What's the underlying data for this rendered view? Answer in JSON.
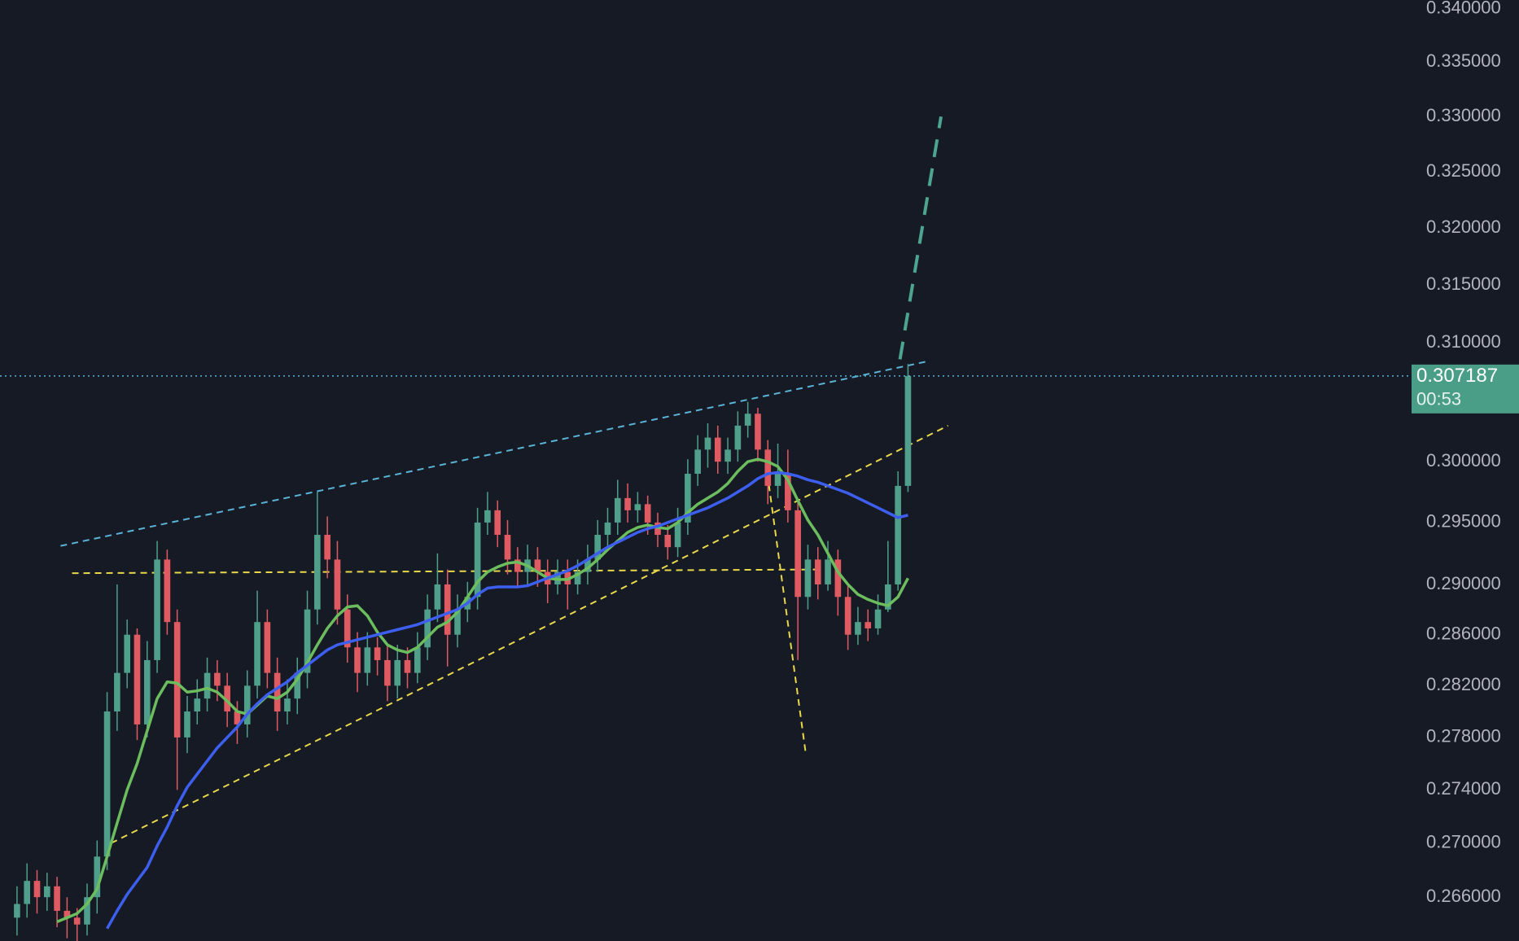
{
  "chart_data": {
    "type": "candlestick",
    "xlim": [
      -1.7,
      139.3
    ],
    "ylim": [
      0.2628,
      0.3408
    ],
    "log_scale": true,
    "yticks": [
      {
        "value": 0.34,
        "label": "0.340000"
      },
      {
        "value": 0.335,
        "label": "0.335000"
      },
      {
        "value": 0.33,
        "label": "0.330000"
      },
      {
        "value": 0.325,
        "label": "0.325000"
      },
      {
        "value": 0.32,
        "label": "0.320000"
      },
      {
        "value": 0.315,
        "label": "0.315000"
      },
      {
        "value": 0.31,
        "label": "0.310000"
      },
      {
        "value": 0.3,
        "label": "0.300000"
      },
      {
        "value": 0.295,
        "label": "0.295000"
      },
      {
        "value": 0.29,
        "label": "0.290000"
      },
      {
        "value": 0.286,
        "label": "0.286000"
      },
      {
        "value": 0.282,
        "label": "0.282000"
      },
      {
        "value": 0.278,
        "label": "0.278000"
      },
      {
        "value": 0.274,
        "label": "0.274000"
      },
      {
        "value": 0.27,
        "label": "0.270000"
      },
      {
        "value": 0.266,
        "label": "0.266000"
      }
    ],
    "up_color": "#4f9f8a",
    "down_color": "#e05a62",
    "open": [
      0.2645,
      0.2655,
      0.2672,
      0.266,
      0.2668,
      0.265,
      0.2645,
      0.264,
      0.266,
      0.269,
      0.28,
      0.283,
      0.286,
      0.279,
      0.284,
      0.292,
      0.287,
      0.278,
      0.28,
      0.281,
      0.283,
      0.282,
      0.28,
      0.279,
      0.282,
      0.287,
      0.283,
      0.28,
      0.281,
      0.283,
      0.288,
      0.294,
      0.292,
      0.288,
      0.285,
      0.283,
      0.285,
      0.284,
      0.282,
      0.284,
      0.283,
      0.285,
      0.288,
      0.29,
      0.286,
      0.288,
      0.289,
      0.295,
      0.296,
      0.294,
      0.292,
      0.291,
      0.292,
      0.291,
      0.29,
      0.291,
      0.29,
      0.291,
      0.292,
      0.294,
      0.295,
      0.297,
      0.296,
      0.2965,
      0.295,
      0.294,
      0.293,
      0.295,
      0.299,
      0.301,
      0.302,
      0.3,
      0.301,
      0.303,
      0.304,
      0.301,
      0.298,
      0.299,
      0.296,
      0.289,
      0.292,
      0.29,
      0.292,
      0.289,
      0.286,
      0.287,
      0.2865,
      0.288,
      0.29,
      0.298
    ],
    "high": [
      0.2668,
      0.2685,
      0.268,
      0.2678,
      0.2675,
      0.266,
      0.2652,
      0.267,
      0.2702,
      0.2815,
      0.29,
      0.2872,
      0.2865,
      0.2855,
      0.2935,
      0.2928,
      0.288,
      0.2812,
      0.2825,
      0.2842,
      0.284,
      0.283,
      0.2808,
      0.2832,
      0.2895,
      0.288,
      0.2842,
      0.2825,
      0.2842,
      0.2895,
      0.2975,
      0.2955,
      0.2935,
      0.2892,
      0.2862,
      0.2862,
      0.2858,
      0.2852,
      0.2852,
      0.285,
      0.2862,
      0.2892,
      0.2925,
      0.2912,
      0.2892,
      0.2902,
      0.2962,
      0.2975,
      0.2968,
      0.2952,
      0.293,
      0.2932,
      0.293,
      0.292,
      0.292,
      0.292,
      0.292,
      0.2932,
      0.2952,
      0.2962,
      0.2985,
      0.2982,
      0.2975,
      0.2972,
      0.2958,
      0.2948,
      0.2962,
      0.3002,
      0.3022,
      0.3032,
      0.303,
      0.302,
      0.3042,
      0.305,
      0.3045,
      0.3018,
      0.3015,
      0.301,
      0.297,
      0.2932,
      0.293,
      0.2935,
      0.2928,
      0.29,
      0.2882,
      0.288,
      0.2892,
      0.2935,
      0.2992,
      0.3082
    ],
    "low": [
      0.2632,
      0.2645,
      0.2648,
      0.265,
      0.2638,
      0.263,
      0.2628,
      0.2632,
      0.2648,
      0.268,
      0.2785,
      0.2818,
      0.2778,
      0.278,
      0.283,
      0.286,
      0.274,
      0.2768,
      0.279,
      0.28,
      0.2808,
      0.2788,
      0.2775,
      0.278,
      0.281,
      0.2818,
      0.2785,
      0.279,
      0.2798,
      0.2818,
      0.2868,
      0.2905,
      0.2868,
      0.2838,
      0.2815,
      0.282,
      0.2828,
      0.2808,
      0.281,
      0.2818,
      0.2822,
      0.284,
      0.287,
      0.2835,
      0.285,
      0.287,
      0.288,
      0.294,
      0.293,
      0.2908,
      0.2898,
      0.29,
      0.2898,
      0.2885,
      0.2892,
      0.288,
      0.2892,
      0.29,
      0.291,
      0.293,
      0.294,
      0.295,
      0.295,
      0.294,
      0.293,
      0.292,
      0.2922,
      0.294,
      0.298,
      0.2995,
      0.299,
      0.299,
      0.3,
      0.302,
      0.3,
      0.2965,
      0.297,
      0.295,
      0.284,
      0.288,
      0.2888,
      0.2895,
      0.2875,
      0.2848,
      0.2852,
      0.2855,
      0.286,
      0.2878,
      0.2895,
      0.2975
    ],
    "close": [
      0.2655,
      0.2672,
      0.266,
      0.2668,
      0.265,
      0.2645,
      0.264,
      0.266,
      0.269,
      0.28,
      0.283,
      0.286,
      0.279,
      0.284,
      0.292,
      0.287,
      0.278,
      0.28,
      0.281,
      0.283,
      0.282,
      0.28,
      0.279,
      0.282,
      0.287,
      0.283,
      0.28,
      0.281,
      0.283,
      0.288,
      0.294,
      0.292,
      0.288,
      0.285,
      0.283,
      0.285,
      0.284,
      0.282,
      0.284,
      0.283,
      0.285,
      0.288,
      0.29,
      0.286,
      0.288,
      0.289,
      0.295,
      0.296,
      0.294,
      0.292,
      0.291,
      0.292,
      0.291,
      0.29,
      0.291,
      0.29,
      0.291,
      0.292,
      0.294,
      0.295,
      0.297,
      0.296,
      0.2965,
      0.295,
      0.294,
      0.293,
      0.295,
      0.299,
      0.301,
      0.302,
      0.3,
      0.301,
      0.303,
      0.304,
      0.301,
      0.298,
      0.299,
      0.296,
      0.289,
      0.292,
      0.29,
      0.292,
      0.289,
      0.286,
      0.287,
      0.2865,
      0.288,
      0.29,
      0.298,
      0.307187
    ],
    "series": [
      {
        "color": "#6cbd5e",
        "values": [
          null,
          null,
          null,
          null,
          0.2642,
          0.2645,
          0.2648,
          0.2655,
          0.2666,
          0.269,
          0.2715,
          0.274,
          0.276,
          0.2785,
          0.281,
          0.2823,
          0.2822,
          0.2815,
          0.2816,
          0.2818,
          0.2815,
          0.2808,
          0.28,
          0.2798,
          0.2805,
          0.2812,
          0.281,
          0.2815,
          0.2825,
          0.2838,
          0.2852,
          0.2865,
          0.2875,
          0.2882,
          0.2883,
          0.2875,
          0.2862,
          0.2852,
          0.2848,
          0.2846,
          0.285,
          0.2858,
          0.2866,
          0.287,
          0.2878,
          0.289,
          0.2902,
          0.291,
          0.2914,
          0.2917,
          0.2918,
          0.2915,
          0.291,
          0.2905,
          0.2904,
          0.2904,
          0.2908,
          0.2913,
          0.292,
          0.2928,
          0.2935,
          0.2942,
          0.2946,
          0.2948,
          0.2946,
          0.2945,
          0.295,
          0.2958,
          0.2965,
          0.297,
          0.2975,
          0.2982,
          0.2992,
          0.3,
          0.3002,
          0.3,
          0.2996,
          0.2985,
          0.2968,
          0.2952,
          0.294,
          0.2925,
          0.291,
          0.29,
          0.2892,
          0.2888,
          0.2885,
          0.2883,
          0.289,
          0.2905
        ]
      },
      {
        "color": "#3d5ff0",
        "values": [
          null,
          null,
          null,
          null,
          null,
          null,
          null,
          null,
          null,
          0.2637,
          0.265,
          0.2662,
          0.2672,
          0.2682,
          0.2698,
          0.2712,
          0.2728,
          0.2742,
          0.2752,
          0.2762,
          0.2772,
          0.278,
          0.2788,
          0.2798,
          0.2806,
          0.2813,
          0.2818,
          0.2823,
          0.283,
          0.2836,
          0.2842,
          0.2848,
          0.2852,
          0.2854,
          0.2856,
          0.2858,
          0.286,
          0.2862,
          0.2864,
          0.2866,
          0.2868,
          0.2871,
          0.2874,
          0.2877,
          0.288,
          0.2885,
          0.2892,
          0.2897,
          0.2898,
          0.2898,
          0.2898,
          0.2899,
          0.2902,
          0.2905,
          0.2908,
          0.2911,
          0.2915,
          0.292,
          0.2925,
          0.293,
          0.2934,
          0.2938,
          0.2942,
          0.2945,
          0.2947,
          0.295,
          0.2953,
          0.2956,
          0.2959,
          0.2962,
          0.2966,
          0.297,
          0.2975,
          0.298,
          0.2986,
          0.299,
          0.2991,
          0.299,
          0.2988,
          0.2985,
          0.2983,
          0.298,
          0.2977,
          0.2974,
          0.297,
          0.2966,
          0.2962,
          0.2958,
          0.2954,
          0.2956
        ]
      }
    ],
    "drawings": [
      {
        "color": "#5ab4d6",
        "x": [
          4.35,
          90.8
        ],
        "y": [
          0.2931,
          0.3084
        ]
      },
      {
        "color": "#e8d84a",
        "x": [
          5.5,
          80.5
        ],
        "y": [
          0.2909,
          0.2912
        ]
      },
      {
        "color": "#e8d84a",
        "x": [
          9.4,
          93
        ],
        "y": [
          0.27,
          0.303
        ]
      },
      {
        "color": "#e8d84a",
        "x": [
          75.1,
          78.8
        ],
        "y": [
          0.2981,
          0.2767
        ]
      },
      {
        "color": "#4da58f",
        "x": [
          88.2,
          92.3
        ],
        "y": [
          0.3086,
          0.33
        ]
      }
    ],
    "last_price": {
      "value": 0.307187,
      "label": "0.307187",
      "countdown": "00:53",
      "color": "#4a9e88"
    }
  }
}
